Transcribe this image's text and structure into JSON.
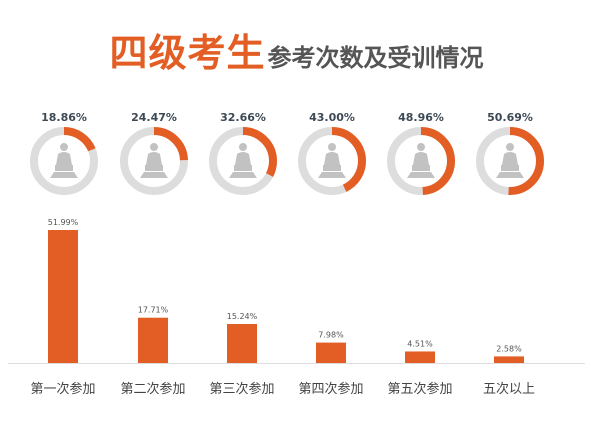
{
  "header": {
    "title_main": "四级考生",
    "title_sub": "参考次数及受训情况"
  },
  "colors": {
    "accent": "#e35e24",
    "ring_bg": "#dddddd",
    "icon_gray": "#c2c2c2",
    "pct_text": "#3d4a55",
    "axis": "#dddddd"
  },
  "icons": {
    "ring_icon": "presenter-podium-icon"
  },
  "chart_data": [
    {
      "type": "pie",
      "style": "donut-progress",
      "values": [
        18.86,
        24.47,
        32.66,
        43.0,
        48.96,
        50.69
      ],
      "labels": [
        "18.86%",
        "24.47%",
        "32.66%",
        "43.00%",
        "48.96%",
        "50.69%"
      ]
    },
    {
      "type": "bar",
      "categories": [
        "第一次参加",
        "第二次参加",
        "第三次参加",
        "第四次参加",
        "第五次参加",
        "五次以上"
      ],
      "values": [
        51.99,
        17.71,
        15.24,
        7.98,
        4.51,
        2.58
      ],
      "labels": [
        "51.99%",
        "17.71%",
        "15.24%",
        "7.98%",
        "4.51%",
        "2.58%"
      ],
      "ylim": [
        0,
        55
      ],
      "grid": false
    }
  ]
}
